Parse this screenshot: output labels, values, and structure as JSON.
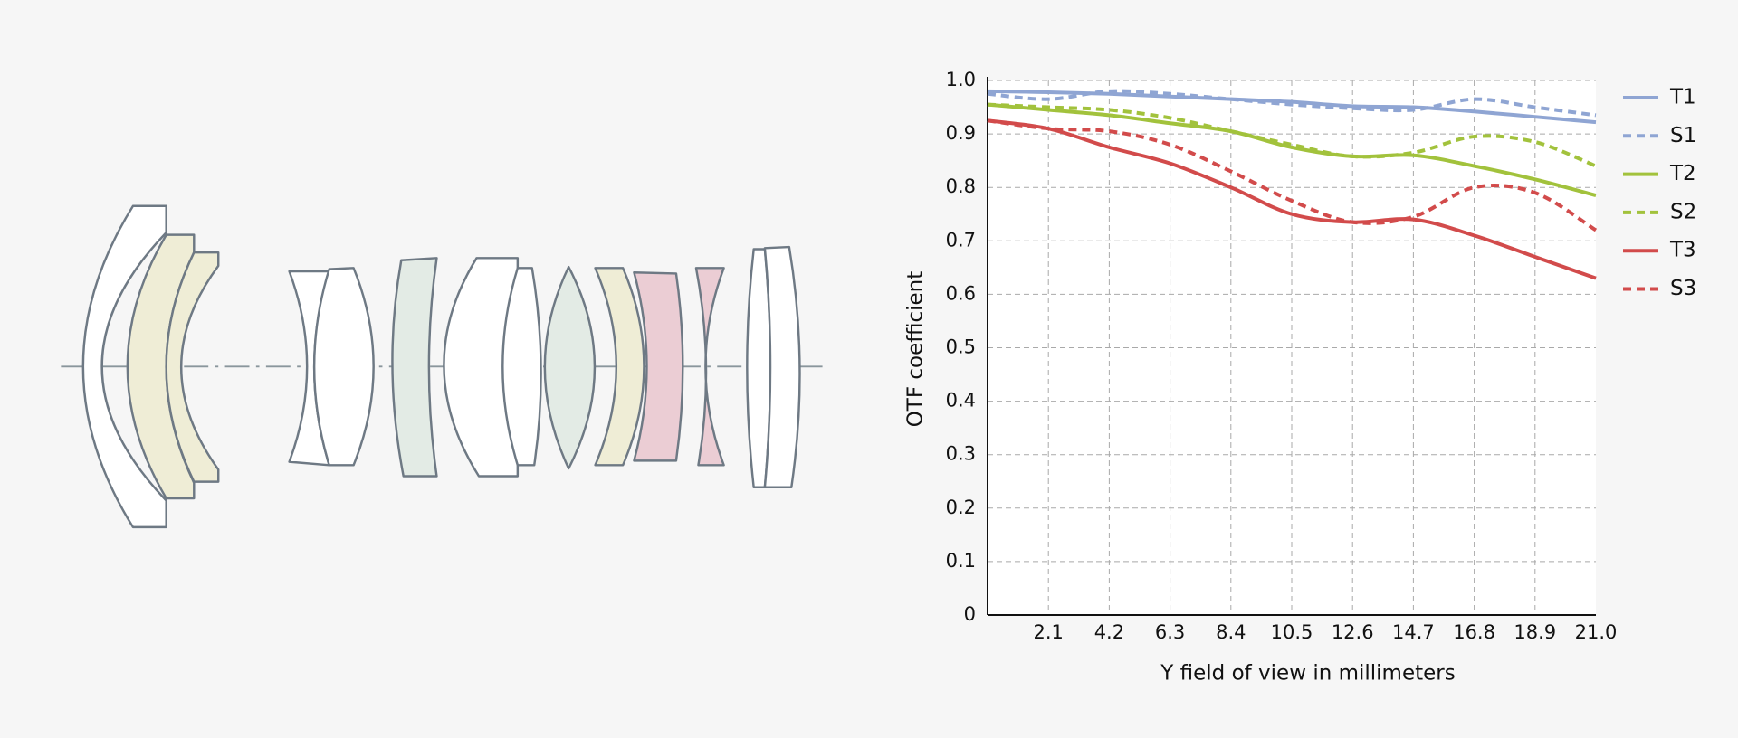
{
  "chart_data": {
    "type": "line",
    "y_label": "OTF coefficient",
    "x_label": "Y field of view in millimeters",
    "x": [
      0,
      2.1,
      4.2,
      6.3,
      8.4,
      10.5,
      12.6,
      14.7,
      16.8,
      18.9,
      21
    ],
    "series": [
      {
        "name": "T1",
        "color": "#8fa5d3",
        "style": "solid",
        "values": [
          0.98,
          0.978,
          0.975,
          0.97,
          0.965,
          0.96,
          0.952,
          0.95,
          0.942,
          0.932,
          0.922
        ]
      },
      {
        "name": "S1",
        "color": "#8fa5d3",
        "style": "dashed",
        "values": [
          0.975,
          0.965,
          0.98,
          0.975,
          0.965,
          0.955,
          0.948,
          0.945,
          0.965,
          0.95,
          0.935
        ]
      },
      {
        "name": "T2",
        "color": "#a2c23c",
        "style": "solid",
        "values": [
          0.955,
          0.945,
          0.935,
          0.92,
          0.905,
          0.875,
          0.858,
          0.86,
          0.84,
          0.815,
          0.785
        ]
      },
      {
        "name": "S2",
        "color": "#a2c23c",
        "style": "dashed",
        "values": [
          0.955,
          0.95,
          0.945,
          0.93,
          0.905,
          0.88,
          0.858,
          0.865,
          0.895,
          0.885,
          0.84
        ]
      },
      {
        "name": "T3",
        "color": "#d24b4b",
        "style": "solid",
        "values": [
          0.925,
          0.91,
          0.875,
          0.845,
          0.8,
          0.75,
          0.735,
          0.74,
          0.71,
          0.67,
          0.63
        ]
      },
      {
        "name": "S3",
        "color": "#d24b4b",
        "style": "dashed",
        "values": [
          0.925,
          0.91,
          0.905,
          0.88,
          0.83,
          0.775,
          0.735,
          0.745,
          0.8,
          0.79,
          0.72
        ]
      }
    ],
    "xlim": [
      0,
      21
    ],
    "xticks": [
      2.1,
      4.2,
      6.3,
      8.4,
      10.5,
      12.6,
      14.7,
      16.8,
      18.9,
      {
        "value": 21,
        "label": "21.0"
      }
    ],
    "ylim": [
      0,
      1
    ],
    "yticks": [
      0,
      0.1,
      0.2,
      0.3,
      0.4,
      0.5,
      0.6,
      0.7,
      0.8,
      0.9,
      {
        "value": 1,
        "label": "1.0"
      }
    ],
    "grid": true,
    "legend": "right"
  }
}
